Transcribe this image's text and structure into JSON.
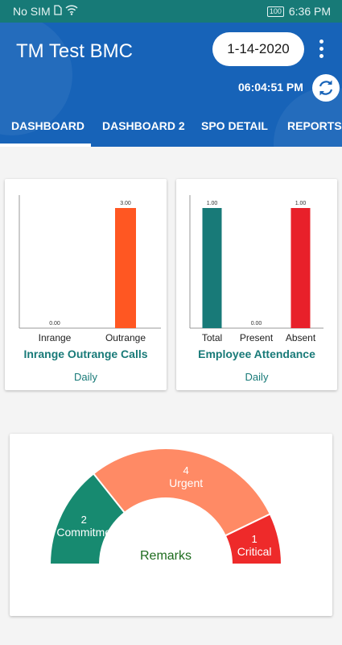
{
  "status_bar": {
    "carrier": "No SIM",
    "battery": "100",
    "time": "6:36 PM"
  },
  "app_bar": {
    "title": "TM Test BMC",
    "date": "1-14-2020",
    "clock": "06:04:51 PM"
  },
  "tabs": [
    {
      "label": "DASHBOARD",
      "selected": true
    },
    {
      "label": "DASHBOARD 2",
      "selected": false
    },
    {
      "label": "SPO DETAIL",
      "selected": false
    },
    {
      "label": "REPORTS",
      "selected": false
    }
  ],
  "cards": {
    "calls": {
      "title": "Inrange Outrange Calls",
      "subtitle": "Daily"
    },
    "attendance": {
      "title": "Employee Attendance",
      "subtitle": "Daily"
    },
    "remarks": {
      "center_label": "Remarks"
    }
  },
  "chart_data": [
    {
      "type": "bar",
      "title": "Inrange Outrange Calls",
      "categories": [
        "Inrange",
        "Outrange"
      ],
      "values": [
        0,
        3
      ],
      "value_labels": [
        "0.00",
        "3.00"
      ],
      "colors": [
        "#ff5722",
        "#ff5722"
      ],
      "ylim": [
        0,
        3
      ]
    },
    {
      "type": "bar",
      "title": "Employee Attendance",
      "categories": [
        "Total",
        "Present",
        "Absent"
      ],
      "values": [
        1,
        0,
        1
      ],
      "value_labels": [
        "1.00",
        "0.00",
        "1.00"
      ],
      "colors": [
        "#187a78",
        "#187a78",
        "#e8202a"
      ],
      "ylim": [
        0,
        1
      ]
    },
    {
      "type": "pie",
      "title": "Remarks",
      "categories": [
        "Commitme",
        "Urgent",
        "Critical"
      ],
      "values": [
        2,
        4,
        1
      ],
      "colors": [
        "#178a70",
        "#ff8a65",
        "#ee2a2a"
      ]
    }
  ]
}
